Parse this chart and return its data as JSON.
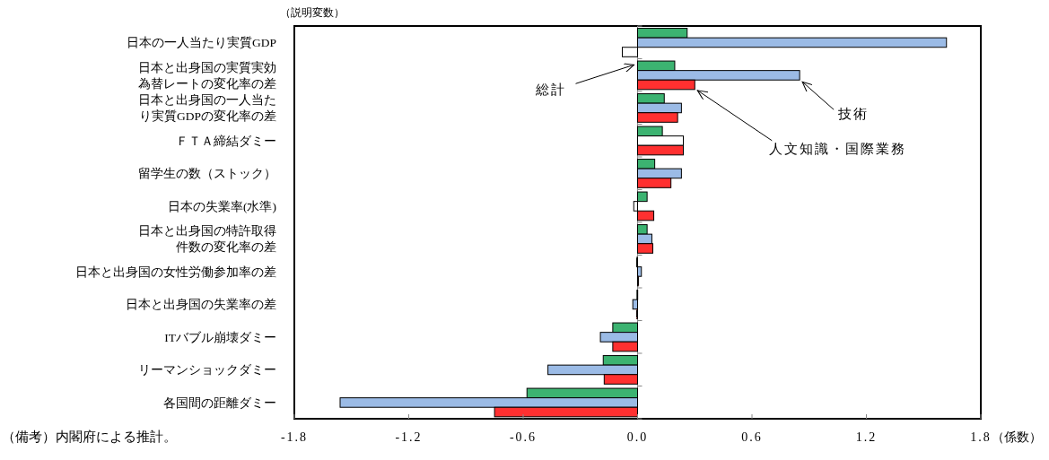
{
  "chart_data": {
    "type": "bar",
    "orientation": "horizontal",
    "ylabel": "（説明変数）",
    "xlabel": "（係数）",
    "categories": [
      "日本の一人当たり実質GDP",
      "日本と出身国の実質実効為替レートの変化率の差",
      "日本と出身国の一人当たり実質GDPの変化率の差",
      "ＦＴＡ締結ダミー",
      "留学生の数（ストック）",
      "日本の失業率(水準)",
      "日本と出身国の特許取得件数の変化率の差",
      "日本と出身国の女性労働参加率の差",
      "日本と出身国の失業率の差",
      "ITバブル崩壊ダミー",
      "リーマンショックダミー",
      "各国間の距離ダミー"
    ],
    "series": [
      {
        "name": "総計",
        "color": "#3cb371",
        "values": [
          0.26,
          0.195,
          0.14,
          0.13,
          0.09,
          0.05,
          0.05,
          -0.005,
          -0.003,
          -0.13,
          -0.18,
          -0.58
        ]
      },
      {
        "name": "技術",
        "colors": [
          "#9bbbe6",
          "#9bbbe6",
          "#9bbbe6",
          "#ffffff",
          "#9bbbe6",
          "#ffffff",
          "#9bbbe6",
          "#9bbbe6",
          "#9bbbe6",
          "#9bbbe6",
          "#9bbbe6",
          "#9bbbe6"
        ],
        "values": [
          1.62,
          0.85,
          0.23,
          0.24,
          0.23,
          -0.02,
          0.075,
          0.02,
          -0.025,
          -0.195,
          -0.47,
          -1.56
        ]
      },
      {
        "name": "人文知識・国際業務",
        "colors": [
          "#ffffff",
          "#ff3030",
          "#ff3030",
          "#ff3030",
          "#ff3030",
          "#ff3030",
          "#ff3030",
          "#ff3030",
          "#ff3030",
          "#ff3030",
          "#ff3030",
          "#ff3030"
        ],
        "values": [
          -0.08,
          0.3,
          0.21,
          0.24,
          0.175,
          0.085,
          0.08,
          0.005,
          -0.005,
          -0.13,
          -0.175,
          -0.75
        ]
      }
    ],
    "xlim": [
      -1.8,
      1.8
    ],
    "xticks": [
      {
        "value": -1.8,
        "label": "-1.8"
      },
      {
        "value": -1.2,
        "label": "-1.2"
      },
      {
        "value": -0.6,
        "label": "-0.6"
      },
      {
        "value": 0,
        "label": "0.0"
      },
      {
        "value": 0.6,
        "label": "0.6"
      },
      {
        "value": 1.2,
        "label": "1.2"
      },
      {
        "value": 1.8,
        "label": "1.8"
      }
    ],
    "annotations": [
      "（備考）内閣府による推計。"
    ]
  }
}
